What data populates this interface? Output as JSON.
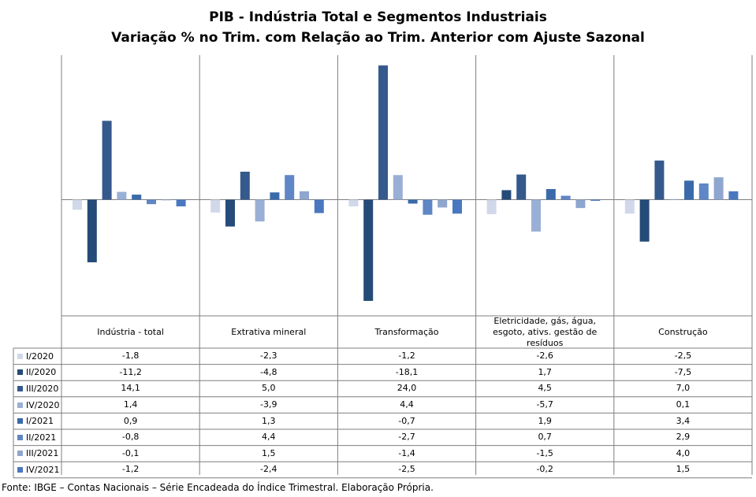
{
  "title": "PIB - Indústria Total e Segmentos Industriais",
  "subtitle": "Variação % no Trim. com Relação ao Trim. Anterior com Ajuste Sazonal",
  "source": "Fonte: IBGE – Contas Nacionais – Série Encadeada do Índice Trimestral. Elaboração Própria.",
  "colors": {
    "series": [
      "#d0d8ea",
      "#254b78",
      "#35598c",
      "#9aafd5",
      "#3a6aaa",
      "#5f86c5",
      "#8fa6cf",
      "#4a78c0"
    ]
  },
  "chart_data": {
    "type": "bar",
    "categories": [
      "Indústria - total",
      "Extrativa mineral",
      "Transformação",
      "Eletricidade, gás, água, esgoto, ativs. gestão de resíduos",
      "Construção"
    ],
    "series": [
      {
        "name": "I/2020",
        "values": [
          -1.8,
          -2.3,
          -1.2,
          -2.6,
          -2.5
        ],
        "labels": [
          "-1,8",
          "-2,3",
          "-1,2",
          "-2,6",
          "-2,5"
        ]
      },
      {
        "name": "II/2020",
        "values": [
          -11.2,
          -4.8,
          -18.1,
          1.7,
          -7.5
        ],
        "labels": [
          "-11,2",
          "-4,8",
          "-18,1",
          "1,7",
          "-7,5"
        ]
      },
      {
        "name": "III/2020",
        "values": [
          14.1,
          5.0,
          24.0,
          4.5,
          7.0
        ],
        "labels": [
          "14,1",
          "5,0",
          "24,0",
          "4,5",
          "7,0"
        ]
      },
      {
        "name": "IV/2020",
        "values": [
          1.4,
          -3.9,
          4.4,
          -5.7,
          0.1
        ],
        "labels": [
          "1,4",
          "-3,9",
          "4,4",
          "-5,7",
          "0,1"
        ]
      },
      {
        "name": "I/2021",
        "values": [
          0.9,
          1.3,
          -0.7,
          1.9,
          3.4
        ],
        "labels": [
          "0,9",
          "1,3",
          "-0,7",
          "1,9",
          "3,4"
        ]
      },
      {
        "name": "II/2021",
        "values": [
          -0.8,
          4.4,
          -2.7,
          0.7,
          2.9
        ],
        "labels": [
          "-0,8",
          "4,4",
          "-2,7",
          "0,7",
          "2,9"
        ]
      },
      {
        "name": "III/2021",
        "values": [
          -0.1,
          1.5,
          -1.4,
          -1.5,
          4.0
        ],
        "labels": [
          "-0,1",
          "1,5",
          "-1,4",
          "-1,5",
          "4,0"
        ]
      },
      {
        "name": "IV/2021",
        "values": [
          -1.2,
          -2.4,
          -2.5,
          -0.2,
          1.5
        ],
        "labels": [
          "-1,2",
          "-2,4",
          "-2,5",
          "-0,2",
          "1,5"
        ]
      }
    ],
    "grid": false,
    "legend": "table",
    "data_table": true
  }
}
